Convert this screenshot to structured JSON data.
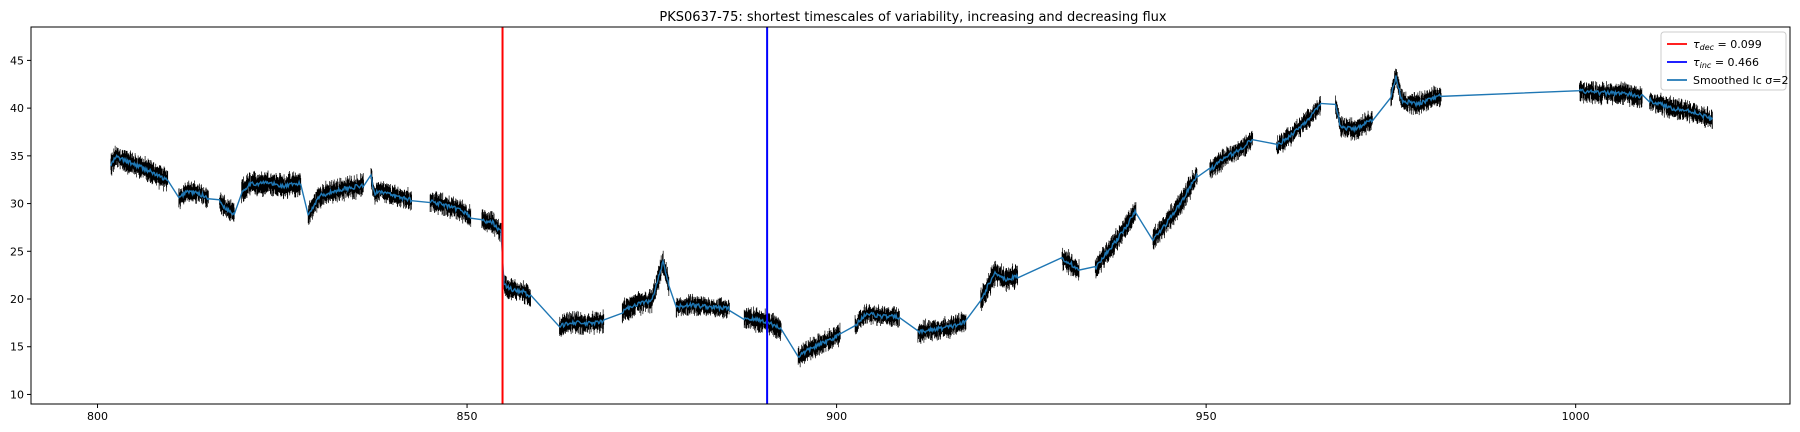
{
  "chart_data": {
    "type": "line",
    "title": "PKS0637-75: shortest timescales of variability, increasing and decreasing flux",
    "xlabel": "",
    "ylabel": "",
    "xlim": [
      791,
      1029
    ],
    "ylim": [
      9,
      48.5
    ],
    "xticks": [
      800,
      850,
      900,
      950,
      1000
    ],
    "yticks": [
      10,
      15,
      20,
      25,
      30,
      35,
      40,
      45
    ],
    "grid": false,
    "legend_position": "top-right",
    "colors": {
      "tau_dec": "#ff0000",
      "tau_inc": "#0000ff",
      "smoothed": "#1f77b4",
      "raw": "#000000"
    },
    "legend": [
      {
        "key": "tau_dec",
        "main": "τ",
        "sub": "dec",
        "rest": " = 0.099"
      },
      {
        "key": "tau_inc",
        "main": "τ",
        "sub": "inc",
        "rest": " = 0.466"
      },
      {
        "key": "smoothed",
        "main": "Smoothed lc σ=2",
        "sub": "",
        "rest": ""
      }
    ],
    "vlines": [
      {
        "name": "tau_dec",
        "x": 854.8
      },
      {
        "name": "tau_inc",
        "x": 890.6
      }
    ],
    "segments": [
      {
        "x": [
          801.8,
          802.5,
          804,
          806,
          808,
          809.5
        ],
        "y": [
          34.0,
          34.9,
          34.4,
          33.8,
          33.0,
          32.4
        ],
        "noise": 1.1
      },
      {
        "x": [
          811.0,
          812,
          813.5,
          815.0
        ],
        "y": [
          30.5,
          31.3,
          31.1,
          30.6
        ],
        "noise": 1.0
      },
      {
        "x": [
          816.5,
          817.5,
          818.5
        ],
        "y": [
          30.2,
          29.4,
          28.9
        ],
        "noise": 1.0
      },
      {
        "x": [
          819.5,
          820.5,
          823,
          825,
          827.5
        ],
        "y": [
          31.2,
          32.0,
          32.2,
          31.8,
          32.1
        ],
        "noise": 1.2
      },
      {
        "x": [
          828.5,
          830,
          833,
          836
        ],
        "y": [
          28.8,
          30.8,
          31.5,
          31.9
        ],
        "noise": 1.1
      },
      {
        "x": [
          837.0,
          837.5,
          838,
          840,
          842.5
        ],
        "y": [
          32.8,
          30.9,
          31.4,
          30.8,
          30.4
        ],
        "noise": 1.0
      },
      {
        "x": [
          845.0,
          847,
          849.5,
          850.5
        ],
        "y": [
          30.3,
          29.8,
          29.2,
          28.6
        ],
        "noise": 1.0
      },
      {
        "x": [
          852.0,
          853.5,
          854.6
        ],
        "y": [
          28.2,
          28.0,
          27.0
        ],
        "noise": 1.0
      },
      {
        "x": [
          855.0,
          856,
          857.5,
          858.6
        ],
        "y": [
          21.5,
          21.0,
          20.8,
          20.2
        ],
        "noise": 1.0
      },
      {
        "x": [
          862.5,
          864,
          866,
          868.5
        ],
        "y": [
          17.1,
          17.6,
          17.4,
          17.6
        ],
        "noise": 1.0
      },
      {
        "x": [
          871.0,
          873,
          875,
          876.5,
          877.3
        ],
        "y": [
          18.7,
          19.5,
          19.8,
          23.8,
          21.5
        ],
        "noise": 1.1
      },
      {
        "x": [
          878.3,
          880,
          882.5,
          885.5
        ],
        "y": [
          19.1,
          19.4,
          19.2,
          19.0
        ],
        "noise": 0.9
      },
      {
        "x": [
          887.5,
          889.5,
          890.6,
          892.5
        ],
        "y": [
          18.0,
          17.8,
          17.6,
          16.9
        ],
        "noise": 1.1
      },
      {
        "x": [
          894.8,
          896.5,
          898.5,
          900.5
        ],
        "y": [
          14.0,
          14.8,
          15.5,
          16.3
        ],
        "noise": 1.0
      },
      {
        "x": [
          902.5,
          904,
          906,
          908.5
        ],
        "y": [
          17.2,
          18.5,
          18.2,
          18.1
        ],
        "noise": 0.9
      },
      {
        "x": [
          911.0,
          913,
          915.5,
          917.5
        ],
        "y": [
          16.5,
          16.8,
          17.1,
          17.6
        ],
        "noise": 1.0
      },
      {
        "x": [
          919.5,
          920.5,
          921.5,
          923,
          924.5
        ],
        "y": [
          19.8,
          21.4,
          22.8,
          22.0,
          22.4
        ],
        "noise": 1.2
      },
      {
        "x": [
          930.5,
          931.5,
          932.8
        ],
        "y": [
          24.2,
          23.8,
          23.0
        ],
        "noise": 1.1
      },
      {
        "x": [
          935.0,
          936.5,
          938.5,
          940.5
        ],
        "y": [
          23.2,
          24.8,
          26.8,
          29.2
        ],
        "noise": 1.1
      },
      {
        "x": [
          942.8,
          944.5,
          946.5,
          948.8
        ],
        "y": [
          26.2,
          27.8,
          30.0,
          33.0
        ],
        "noise": 1.1
      },
      {
        "x": [
          950.5,
          952.5,
          954.5,
          956.3
        ],
        "y": [
          33.5,
          34.8,
          35.6,
          36.8
        ],
        "noise": 0.9
      },
      {
        "x": [
          959.5,
          961.5,
          963.5,
          965.5
        ],
        "y": [
          36.0,
          37.2,
          38.6,
          40.3
        ],
        "noise": 0.9
      },
      {
        "x": [
          967.5,
          968.2,
          970,
          972.5
        ],
        "y": [
          40.4,
          38.0,
          37.8,
          38.8
        ],
        "noise": 1.0
      },
      {
        "x": [
          975.0,
          975.7,
          976.5,
          978.5,
          981.8
        ],
        "y": [
          41.2,
          43.3,
          40.8,
          40.4,
          41.3
        ],
        "noise": 1.0
      },
      {
        "x": [
          1000.5,
          1003,
          1006,
          1009
        ],
        "y": [
          41.8,
          41.6,
          41.6,
          41.2
        ],
        "noise": 1.0
      },
      {
        "x": [
          1010.0,
          1013,
          1016,
          1018.5
        ],
        "y": [
          40.8,
          40.0,
          39.6,
          38.8
        ],
        "noise": 1.0
      }
    ]
  }
}
